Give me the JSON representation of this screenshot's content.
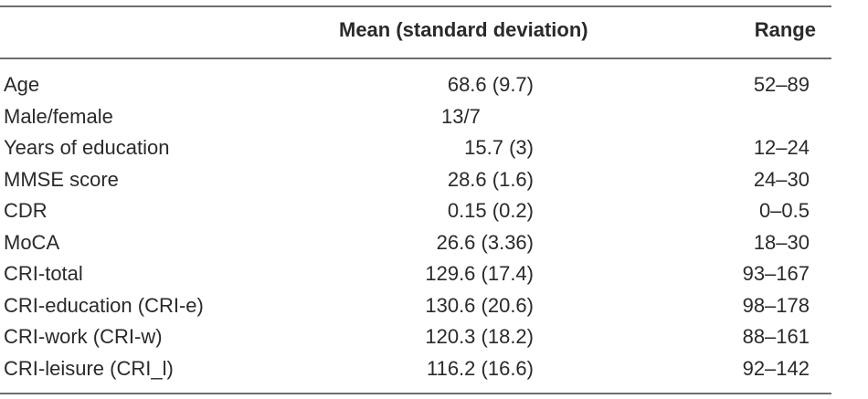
{
  "table": {
    "headers": {
      "label": "",
      "mean": "Mean (standard deviation)",
      "range": "Range"
    },
    "rows": [
      {
        "label": "Age",
        "mean": "68.6 (9.7)",
        "range": "52–89"
      },
      {
        "label": "Male/female",
        "mean": "13/7",
        "range": ""
      },
      {
        "label": "Years of education",
        "mean": "15.7 (3)",
        "range": "12–24"
      },
      {
        "label": "MMSE score",
        "mean": "28.6 (1.6)",
        "range": "24–30"
      },
      {
        "label": "CDR",
        "mean": "0.15 (0.2)",
        "range": "0–0.5"
      },
      {
        "label": "MoCA",
        "mean": "26.6 (3.36)",
        "range": "18–30"
      },
      {
        "label": "CRI-total",
        "mean": "129.6 (17.4)",
        "range": "93–167"
      },
      {
        "label": "CRI-education (CRI-e)",
        "mean": "130.6 (20.6)",
        "range": "98–178"
      },
      {
        "label": "CRI-work (CRI-w)",
        "mean": "120.3 (18.2)",
        "range": "88–161"
      },
      {
        "label": "CRI-leisure (CRI_l)",
        "mean": "116.2 (16.6)",
        "range": "92–142"
      }
    ]
  }
}
